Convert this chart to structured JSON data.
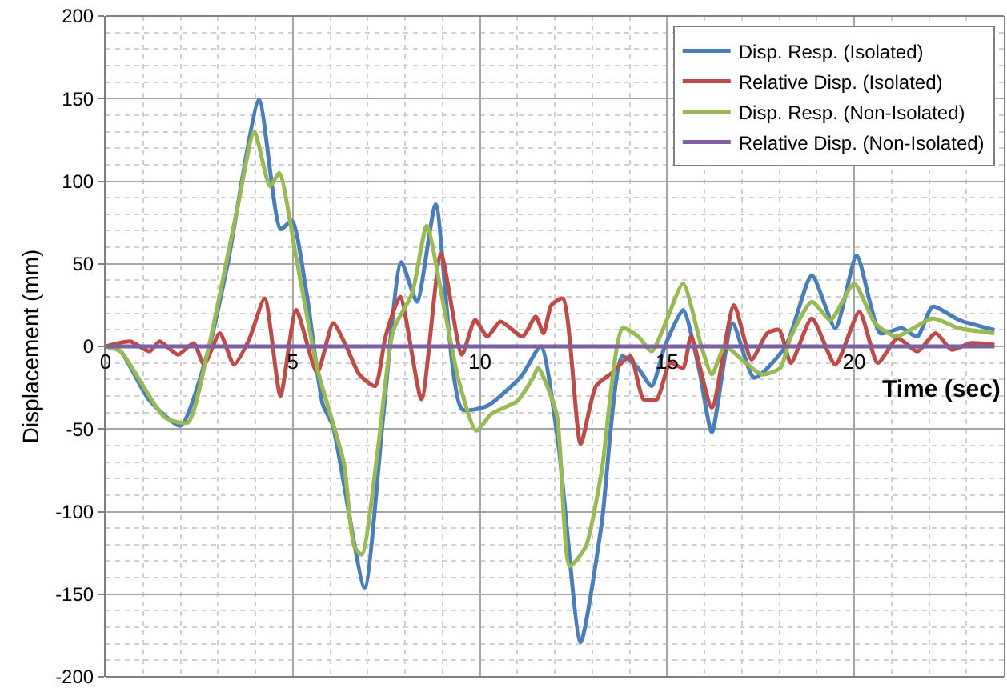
{
  "chart_data": {
    "type": "line",
    "xlabel": "Time (sec)",
    "ylabel": "Displacement (mm)",
    "xlim": [
      0,
      24
    ],
    "ylim": [
      -200,
      200
    ],
    "xticks": [
      0,
      5,
      10,
      15,
      20
    ],
    "yticks": [
      -200,
      -150,
      -100,
      -50,
      0,
      50,
      100,
      150,
      200
    ],
    "grid": true,
    "legend": "top right",
    "line_style": "solid",
    "marker": "none",
    "series": [
      {
        "name": "Disp. Resp. (Isolated)",
        "color": "#4a7ebb",
        "x": [
          0,
          0.4,
          1.15,
          2.0,
          2.77,
          3.26,
          4.1,
          4.67,
          4.98,
          5.37,
          5.8,
          6.07,
          6.92,
          7.41,
          7.9,
          8.32,
          8.82,
          9.52,
          10.2,
          10.7,
          11.14,
          11.63,
          12.1,
          12.69,
          13.25,
          13.8,
          14.22,
          14.59,
          14.94,
          15.43,
          15.85,
          16.2,
          16.75,
          17.33,
          18.17,
          18.87,
          19.5,
          20.07,
          20.7,
          21.27,
          21.69,
          22.1,
          22.8,
          23.75
        ],
        "values": [
          0,
          -3,
          -32,
          -48,
          0,
          50,
          149,
          71,
          76,
          32,
          -35,
          -48,
          -146,
          -44,
          51,
          27,
          86,
          -38,
          -36,
          -27,
          -17,
          0,
          -60,
          -179,
          -108,
          -6,
          -13,
          -24,
          0,
          22,
          -13,
          -52,
          14,
          -19,
          0,
          43,
          11,
          55,
          8,
          11,
          6,
          24,
          16,
          10
        ]
      },
      {
        "name": "Relative Disp. (Isolated)",
        "color": "#be4b48",
        "x": [
          0,
          0.66,
          1.17,
          1.44,
          1.93,
          2.35,
          2.63,
          3.05,
          3.43,
          3.83,
          4.25,
          4.67,
          5.09,
          5.65,
          6.08,
          6.43,
          6.78,
          7.2,
          7.48,
          7.87,
          8.44,
          8.96,
          9.52,
          9.87,
          10.2,
          10.55,
          11.14,
          11.49,
          11.7,
          11.91,
          12.22,
          12.69,
          13.1,
          13.53,
          14.02,
          14.37,
          14.73,
          15.08,
          15.43,
          15.64,
          16.2,
          16.79,
          17.26,
          17.68,
          18.0,
          18.31,
          18.87,
          19.5,
          20.14,
          20.63,
          21.16,
          21.69,
          22.18,
          22.6,
          23.1,
          23.75
        ],
        "values": [
          0,
          3,
          -3,
          3,
          -5,
          2,
          -11,
          8,
          -11,
          4,
          29,
          -30,
          22,
          -16,
          14,
          0,
          -17,
          -24,
          6,
          30,
          -32,
          56,
          -5,
          16,
          6,
          15,
          6,
          18,
          8,
          25,
          29,
          -59,
          -24,
          -16,
          -6,
          -32,
          -32,
          -10,
          -13,
          6,
          -37,
          25,
          -8,
          8,
          10,
          -10,
          17,
          -11,
          21,
          -10,
          5,
          -3,
          8,
          -2,
          2,
          1
        ]
      },
      {
        "name": "Disp. Resp. (Non-Isolated)",
        "color": "#98b954",
        "x": [
          0,
          0.4,
          1.58,
          2.2,
          2.7,
          3.54,
          3.97,
          4.39,
          4.64,
          5.09,
          5.65,
          6.36,
          6.64,
          6.85,
          7.27,
          7.69,
          8.19,
          8.58,
          9.03,
          9.45,
          9.9,
          10.3,
          11.0,
          11.42,
          11.56,
          12.05,
          12.4,
          12.83,
          13.25,
          13.81,
          14.23,
          14.59,
          14.94,
          15.43,
          15.92,
          16.2,
          16.55,
          17.05,
          17.54,
          18.03,
          18.31,
          18.87,
          19.37,
          20.0,
          20.56,
          21.13,
          22.1,
          22.8,
          23.75
        ],
        "values": [
          0,
          -3,
          -43,
          -46,
          -6,
          86,
          130,
          97,
          105,
          54,
          -13,
          -70,
          -121,
          -126,
          -63,
          10,
          32,
          73,
          25,
          -22,
          -51,
          -41,
          -33,
          -19,
          -13,
          -41,
          -133,
          -121,
          -76,
          11,
          6,
          -3,
          13,
          38,
          0,
          -17,
          0,
          -9,
          -17,
          -13,
          6,
          27,
          16,
          38,
          14,
          6,
          17,
          11,
          8
        ]
      },
      {
        "name": "Relative Disp. (Non-Isolated)",
        "color": "#7d60a0",
        "x": [
          0,
          4,
          8,
          12,
          16,
          20,
          23.75
        ],
        "values": [
          0,
          0,
          0,
          0,
          0,
          0,
          0
        ]
      }
    ]
  }
}
